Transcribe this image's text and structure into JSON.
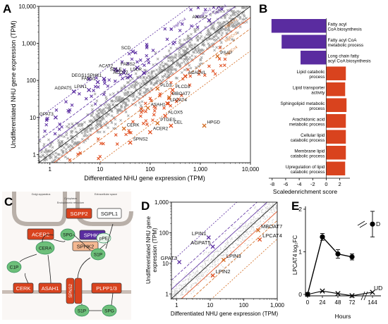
{
  "colors": {
    "purple": "#5a2ca0",
    "orange": "#d2691e",
    "red": "#e04a1a",
    "grey": "#9a9a9a",
    "lightgrey": "#d4d4d4",
    "black": "#000000",
    "green": "#6dbf7a",
    "greenDark": "#2e8b57",
    "redCell": "#d9431e",
    "peach": "#f4b892"
  },
  "chart_data": [
    {
      "panel": "A",
      "type": "scatter",
      "xlabel": "Differentiated NHU gene expression (TPM)",
      "ylabel": "Undifferentiated NHU gene expression (TPM)",
      "log_scale": true,
      "xlim": [
        0.6,
        10000
      ],
      "ylim": [
        0.6,
        10000
      ],
      "x_ticks": [
        "1",
        "10",
        "100",
        "1,000",
        "10,000"
      ],
      "y_ticks": [
        "1",
        "10",
        "100",
        "1,000",
        "10,000"
      ],
      "reference_lines": [
        "logFC>4",
        "logFC>2",
        "logFC>1",
        "logFC<1",
        "logFC<2",
        "logFC<4"
      ],
      "labelled_points": [
        {
          "label": "ANXA2",
          "x": 1500,
          "y": 4200,
          "group": "up"
        },
        {
          "label": "SCD",
          "x": 45,
          "y": 600,
          "group": "up"
        },
        {
          "label": "FADS2",
          "x": 55,
          "y": 220,
          "group": "up"
        },
        {
          "label": "LDLR",
          "x": 75,
          "y": 160,
          "group": "up"
        },
        {
          "label": "ACOT7",
          "x": 40,
          "y": 130,
          "group": "up"
        },
        {
          "label": "SQLE",
          "x": 30,
          "y": 160,
          "group": "up"
        },
        {
          "label": "ACAT2",
          "x": 20,
          "y": 200,
          "group": "up"
        },
        {
          "label": "SPHK1",
          "x": 12,
          "y": 110,
          "group": "up"
        },
        {
          "label": "FADS1",
          "x": 9,
          "y": 90,
          "group": "up"
        },
        {
          "label": "DEGS1",
          "x": 6,
          "y": 110,
          "group": "up"
        },
        {
          "label": "AGPAT5",
          "x": 3,
          "y": 50,
          "group": "up"
        },
        {
          "label": "LPIN1",
          "x": 6,
          "y": 55,
          "group": "up"
        },
        {
          "label": "GPAT3",
          "x": 1.3,
          "y": 10,
          "group": "up"
        },
        {
          "label": "PSAP",
          "x": 2200,
          "y": 450,
          "group": "down"
        },
        {
          "label": "ACADVL",
          "x": 500,
          "y": 130,
          "group": "down"
        },
        {
          "label": "PLD3",
          "x": 140,
          "y": 60,
          "group": "down"
        },
        {
          "label": "PLCD3",
          "x": 280,
          "y": 55,
          "group": "down"
        },
        {
          "label": "MBOAT7",
          "x": 240,
          "y": 35,
          "group": "down"
        },
        {
          "label": "LPCAT4",
          "x": 220,
          "y": 24,
          "group": "down"
        },
        {
          "label": "ASAH1",
          "x": 90,
          "y": 18,
          "group": "down"
        },
        {
          "label": "ALOX5",
          "x": 200,
          "y": 11,
          "group": "down"
        },
        {
          "label": "PTGES",
          "x": 140,
          "y": 7,
          "group": "down"
        },
        {
          "label": "CEL",
          "x": 260,
          "y": 6,
          "group": "down"
        },
        {
          "label": "HPGD",
          "x": 1200,
          "y": 6,
          "group": "down"
        },
        {
          "label": "ACER2",
          "x": 100,
          "y": 4,
          "group": "down"
        },
        {
          "label": "CERK",
          "x": 30,
          "y": 5,
          "group": "down"
        },
        {
          "label": "SPNS2",
          "x": 40,
          "y": 2.1,
          "group": "down"
        }
      ]
    },
    {
      "panel": "B",
      "type": "bar",
      "orientation": "horizontal",
      "xlabel": "Scaledenrichment score",
      "xlim": [
        -8.5,
        3.5
      ],
      "x_ticks": [
        "-8",
        "-6",
        "-4",
        "-2",
        "0",
        "2"
      ],
      "categories": [
        "Fatty acyl CoA biosynthesis",
        "Fatty acyl CoA metabolic process",
        "Long chain fatty acyl CoA biosynthesis",
        "Lipid catabolic process",
        "Lipid transporter activity",
        "Sphingolipid metabolic process",
        "Arachidonic acid metabolic process",
        "Cellular lipid catabolic process",
        "Membrane lipid catabolic process",
        "Upregulation of lipid catabolic process"
      ],
      "values": [
        -8.1,
        -6.6,
        -3.8,
        2.9,
        2.8,
        3.0,
        2.9,
        2.9,
        2.9,
        2.8
      ]
    },
    {
      "panel": "D",
      "type": "scatter",
      "xlabel": "Differentiated NHU gene expression (TPM)",
      "ylabel": "Undifferentiated NHU gene expression (TPM)",
      "log_scale": true,
      "xlim": [
        0.7,
        1000
      ],
      "ylim": [
        0.7,
        1000
      ],
      "x_ticks": [
        "1",
        "10",
        "100",
        "1,000"
      ],
      "y_ticks": [
        "1",
        "10",
        "100",
        "1,000"
      ],
      "labelled_points": [
        {
          "label": "LPIN1",
          "x": 9,
          "y": 70,
          "group": "up"
        },
        {
          "label": "AGPAT5",
          "x": 12,
          "y": 35,
          "group": "up"
        },
        {
          "label": "GPAT3",
          "x": 1.2,
          "y": 11,
          "group": "up"
        },
        {
          "label": "MBOAT7",
          "x": 270,
          "y": 120,
          "group": "down"
        },
        {
          "label": "LPCAT4",
          "x": 300,
          "y": 60,
          "group": "down"
        },
        {
          "label": "LPIN3",
          "x": 25,
          "y": 13,
          "group": "down"
        },
        {
          "label": "LPIN2",
          "x": 12,
          "y": 4,
          "group": "down"
        }
      ]
    },
    {
      "panel": "E",
      "type": "line",
      "xlabel": "Hours",
      "ylabel": "LPCAT4 log₂FC",
      "ylim": [
        0,
        2
      ],
      "y_ticks": [
        "0",
        "1",
        "2"
      ],
      "categories": [
        "0",
        "24",
        "48",
        "72",
        "144"
      ],
      "series": [
        {
          "name": "D",
          "values": [
            0,
            1.35,
            0.95,
            0.88,
            1.65
          ]
        },
        {
          "name": "UD",
          "values": [
            0,
            0.08,
            0.02,
            -0.03,
            0.05
          ]
        }
      ]
    }
  ],
  "panelC": {
    "compartments": [
      "Golgi apparatus",
      "Cytoplasm",
      "Endoplasmic reticulum",
      "Extracellular space"
    ],
    "nodes": [
      "ACER2",
      "SGPP2",
      "SGPL1",
      "SPHK1",
      "SPHK2",
      "pPE",
      "SPG",
      "CERA",
      "C1P",
      "S1P",
      "CERK",
      "ASAH1",
      "SPNS2",
      "PLPP1/3",
      "S1P",
      "SPG"
    ]
  },
  "panel_letters": [
    "A",
    "B",
    "C",
    "D",
    "E"
  ]
}
